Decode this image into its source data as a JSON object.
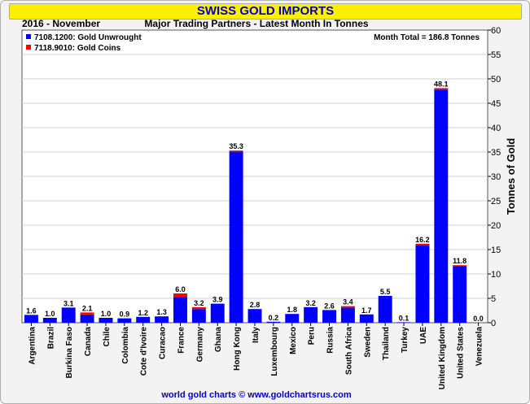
{
  "header": {
    "title": "SWISS GOLD IMPORTS",
    "period": "2016 - November",
    "subtitle": "Major Trading Partners - Latest Month In Tonnes",
    "month_total": "Month Total = 186.8 Tonnes"
  },
  "footer": {
    "credit": "world gold charts © www.goldchartsrus.com"
  },
  "colors": {
    "unwrought": "#0000ff",
    "coins": "#ff0000",
    "title_band": "#ffef00",
    "title_text": "#0000cc"
  },
  "chart_data": {
    "type": "bar",
    "stacked": true,
    "categories": [
      "Argentina",
      "Brazil",
      "Burkina Faso",
      "Canada",
      "Chile",
      "Colombia",
      "Cote d'Ivoire",
      "Curacao",
      "France",
      "Germany",
      "Ghana",
      "Hong Kong",
      "Italy",
      "Luxembourg",
      "Mexico",
      "Peru",
      "Russia",
      "South Africa",
      "Sweden",
      "Thailand",
      "Turkey",
      "UAE",
      "United Kingdom",
      "United States",
      "Venezuela"
    ],
    "totals": [
      "1.6",
      "1.0",
      "3.1",
      "2.1",
      "1.0",
      "0.9",
      "1.2",
      "1.3",
      "6.0",
      "3.2",
      "3.9",
      "35.3",
      "2.8",
      "0.2",
      "1.8",
      "3.2",
      "2.6",
      "3.4",
      "1.7",
      "5.5",
      "0.1",
      "16.2",
      "48.1",
      "11.8",
      "0.0"
    ],
    "series": [
      {
        "name": "7108.1200: Gold Unwrought",
        "values": [
          1.6,
          1.0,
          3.1,
          1.7,
          1.0,
          0.9,
          1.2,
          1.3,
          5.3,
          2.8,
          3.9,
          35.1,
          2.8,
          0.2,
          1.8,
          3.2,
          2.6,
          3.1,
          1.7,
          5.5,
          0.1,
          15.9,
          47.8,
          11.6,
          0.0
        ]
      },
      {
        "name": "7118.9010: Gold Coins",
        "values": [
          0.0,
          0.0,
          0.0,
          0.4,
          0.0,
          0.0,
          0.0,
          0.0,
          0.7,
          0.4,
          0.0,
          0.2,
          0.0,
          0.0,
          0.0,
          0.0,
          0.0,
          0.3,
          0.0,
          0.0,
          0.0,
          0.3,
          0.3,
          0.2,
          0.0
        ]
      }
    ],
    "ylabel": "Tonnes of Gold",
    "ylim": [
      0,
      60
    ],
    "yticks": [
      0,
      5,
      10,
      15,
      20,
      25,
      30,
      35,
      40,
      45,
      50,
      55,
      60
    ],
    "grid": true,
    "legend": "top-left",
    "y_axis_side": "right"
  }
}
